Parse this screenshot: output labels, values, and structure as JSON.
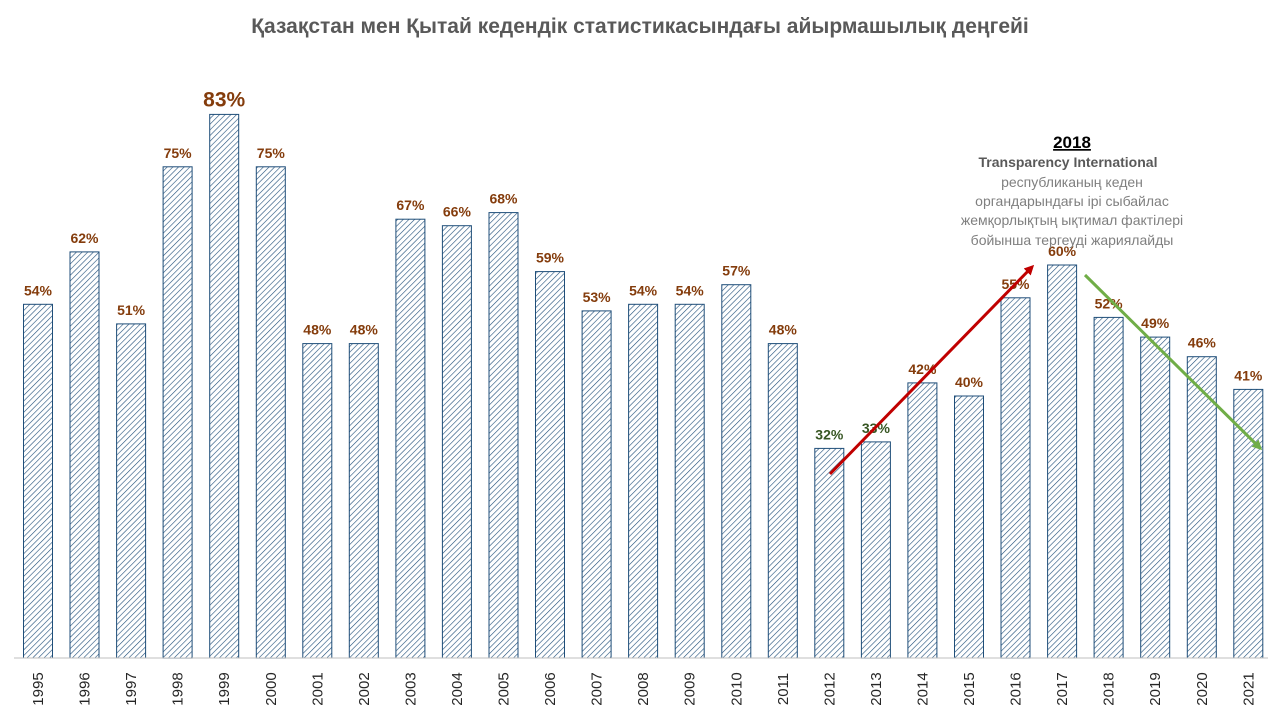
{
  "chart_data": {
    "type": "bar",
    "title": "Қазақстан мен Қытай кедендік статистикасындағы айырмашылық деңгейі",
    "categories": [
      "1995",
      "1996",
      "1997",
      "1998",
      "1999",
      "2000",
      "2001",
      "2002",
      "2003",
      "2004",
      "2005",
      "2006",
      "2007",
      "2008",
      "2009",
      "2010",
      "2011",
      "2012",
      "2013",
      "2014",
      "2015",
      "2016",
      "2017",
      "2018",
      "2019",
      "2020",
      "2021"
    ],
    "values": [
      54,
      62,
      51,
      75,
      83,
      75,
      48,
      48,
      67,
      66,
      68,
      59,
      53,
      54,
      54,
      57,
      48,
      32,
      33,
      42,
      40,
      55,
      60,
      52,
      49,
      46,
      41
    ],
    "labels": [
      "54%",
      "62%",
      "51%",
      "75%",
      "83%",
      "75%",
      "48%",
      "48%",
      "67%",
      "66%",
      "68%",
      "59%",
      "53%",
      "54%",
      "54%",
      "57%",
      "48%",
      "32%",
      "33%",
      "42%",
      "40%",
      "55%",
      "60%",
      "52%",
      "49%",
      "46%",
      "41%"
    ],
    "highlight_label_index": 4,
    "green_label_indices": [
      17,
      18
    ],
    "ylim": [
      0,
      90
    ],
    "xlabel": "",
    "ylabel": "",
    "grid": false,
    "legend": "none",
    "colors": {
      "bar_hatch": "#1F4E79",
      "label": "#843C0C",
      "label_green": "#375623",
      "title": "#595959",
      "arrow_up": "#C00000",
      "arrow_down": "#70AD47"
    },
    "annotation": {
      "year": "2018",
      "org": "Transparency International",
      "lines": [
        "республиканың  кеден",
        "органдарындағы ірі сыбайлас",
        "жемқорлықтың ықтимал фактілері",
        "бойынша  тергеуді жариялайды"
      ],
      "arrows": [
        "up-right (red)",
        "down-right (green)"
      ]
    }
  }
}
